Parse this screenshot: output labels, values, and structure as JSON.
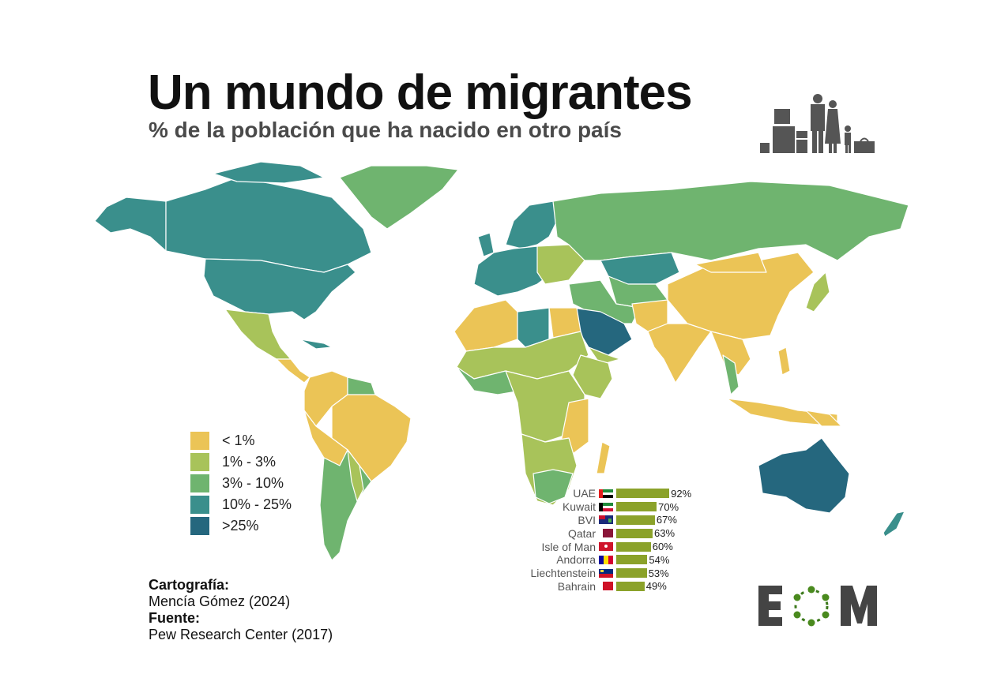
{
  "title": "Un mundo de migrantes",
  "subtitle": "% de la población que ha nacido en otro país",
  "legend": [
    {
      "label": "< 1%",
      "color": "#ebc456"
    },
    {
      "label": "1% - 3%",
      "color": "#a8c35a"
    },
    {
      "label": "3% - 10%",
      "color": "#6fb46f"
    },
    {
      "label": "10% - 25%",
      "color": "#3a8f8c"
    },
    {
      ">label": "",
      "label": ">25%",
      "color": "#25677e"
    }
  ],
  "credits": {
    "cartography_label": "Cartografía:",
    "cartography_value": "Mencía Gómez (2024)",
    "source_label": "Fuente:",
    "source_value": "Pew Research Center (2017)"
  },
  "top_countries": {
    "bar_color": "#8ba22a",
    "items": [
      {
        "name": "UAE",
        "value": 92,
        "label": "92%",
        "flag": "uae-flag"
      },
      {
        "name": "Kuwait",
        "value": 70,
        "label": "70%",
        "flag": "kuwait-flag"
      },
      {
        "name": "BVI",
        "value": 67,
        "label": "67%",
        "flag": "bvi-flag"
      },
      {
        "name": "Qatar",
        "value": 63,
        "label": "63%",
        "flag": "qatar-flag"
      },
      {
        "name": "Isle of Man",
        "value": 60,
        "label": "60%",
        "flag": "isle-of-man-flag"
      },
      {
        "name": "Andorra",
        "value": 54,
        "label": "54%",
        "flag": "andorra-flag"
      },
      {
        "name": "Liechtenstein",
        "value": 53,
        "label": "53%",
        "flag": "liechtenstein-flag"
      },
      {
        "name": "Bahrain",
        "value": 49,
        "label": "49%",
        "flag": "bahrain-flag"
      }
    ]
  },
  "logo_text": "EOM"
}
